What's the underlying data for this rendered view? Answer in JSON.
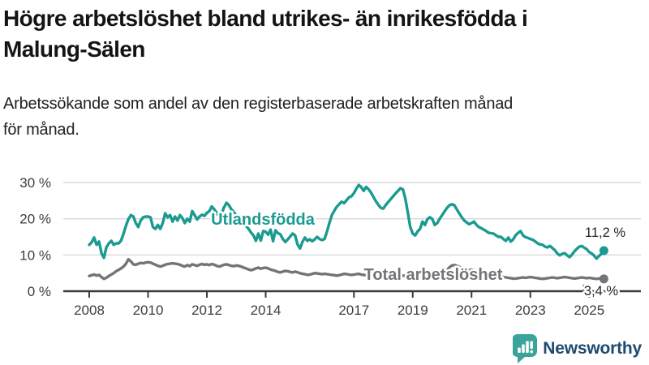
{
  "header": {
    "title": "Högre arbetslöshet bland utrikes- än inrikesfödda i Malung-Sälen",
    "title_lines": [
      "Högre arbetslöshet bland utrikes- än inrikesfödda i",
      "Malung-Sälen"
    ],
    "subtitle": "Arbetssökande som andel av den registerbaserade arbetskraften månad för månad.",
    "subtitle_lines": [
      "Arbetssökande som andel av den registerbaserade arbetskraften månad",
      "för månad."
    ]
  },
  "footer": {
    "brand_name": "Newsworthy",
    "brand_icon": "bar-chart-speech-bubble-icon",
    "brand_icon_color": "#3aa39a",
    "brand_text_color": "#1e4a6e"
  },
  "colors": {
    "series_foreign_born": "#1a9a90",
    "series_total": "#747379",
    "gridline": "#d9d9d9",
    "axis": "#3a3a3a",
    "axis_text": "#3d3d3d"
  },
  "chart_data": {
    "type": "line",
    "title": "Högre arbetslöshet bland utrikes- än inrikesfödda i Malung-Sälen",
    "subtitle": "Arbetssökande som andel av den registerbaserade arbetskraften månad för månad.",
    "x_unit": "month",
    "x_range": {
      "start": "2008-01",
      "end": "2025-07"
    },
    "x_ticks": [
      {
        "year": 2008,
        "label": "2008"
      },
      {
        "year": 2010,
        "label": "2010"
      },
      {
        "year": 2012,
        "label": "2012"
      },
      {
        "year": 2014,
        "label": "2014"
      },
      {
        "year": 2017,
        "label": "2017"
      },
      {
        "year": 2019,
        "label": "2019"
      },
      {
        "year": 2021,
        "label": "2021"
      },
      {
        "year": 2023,
        "label": "2023"
      },
      {
        "year": 2025,
        "label": "2025"
      }
    ],
    "y_ticks": [
      {
        "value": 0,
        "label": "0 %"
      },
      {
        "value": 10,
        "label": "10 %"
      },
      {
        "value": 20,
        "label": "20 %"
      },
      {
        "value": 30,
        "label": "30 %"
      }
    ],
    "ylim": [
      0,
      32
    ],
    "grid": true,
    "legend_position": "inline-labels",
    "series": [
      {
        "name": "Utlandsfödda",
        "color": "#1a9a90",
        "end_label": "11,2 %",
        "last_value": 11.2,
        "values": [
          12.8,
          13.5,
          14.8,
          12.8,
          13.7,
          10.5,
          9.2,
          12.1,
          13.2,
          13.9,
          12.8,
          13.2,
          13.2,
          14.0,
          15.9,
          18.1,
          19.9,
          21.0,
          20.6,
          18.8,
          17.7,
          19.5,
          20.4,
          20.6,
          20.6,
          20.4,
          17.7,
          17.2,
          18.3,
          17.2,
          18.8,
          21.5,
          20.4,
          21.0,
          19.2,
          20.6,
          19.5,
          21.0,
          20.2,
          18.8,
          20.0,
          19.2,
          22.1,
          21.0,
          19.8,
          20.6,
          21.1,
          20.8,
          21.6,
          22.1,
          23.4,
          22.6,
          21.6,
          20.6,
          21.4,
          23.1,
          24.4,
          23.7,
          22.6,
          21.8,
          21.0,
          20.2,
          19.4,
          18.7,
          18.0,
          17.2,
          16.2,
          15.4,
          13.9,
          15.9,
          14.0,
          16.6,
          16.4,
          15.6,
          17.0,
          13.8,
          16.8,
          16.0,
          15.7,
          14.4,
          13.6,
          14.3,
          15.1,
          15.9,
          15.4,
          12.9,
          11.8,
          13.6,
          14.8,
          13.9,
          14.3,
          13.8,
          14.3,
          15.0,
          14.4,
          14.1,
          14.4,
          16.4,
          18.8,
          21.0,
          22.2,
          23.3,
          24.0,
          24.7,
          24.3,
          25.1,
          25.9,
          26.2,
          27.1,
          28.3,
          29.3,
          28.7,
          27.7,
          28.8,
          28.1,
          27.2,
          26.0,
          24.8,
          23.8,
          23.0,
          22.8,
          23.8,
          24.6,
          25.4,
          26.2,
          27.0,
          27.7,
          28.4,
          28.1,
          25.5,
          21.7,
          17.7,
          15.9,
          15.4,
          16.5,
          17.2,
          19.2,
          18.3,
          19.9,
          20.4,
          19.9,
          18.3,
          18.8,
          20.0,
          21.0,
          22.0,
          23.0,
          23.7,
          24.0,
          23.7,
          22.6,
          21.5,
          20.4,
          19.5,
          19.0,
          18.5,
          18.8,
          19.2,
          18.3,
          17.7,
          17.4,
          17.0,
          16.6,
          16.1,
          16.0,
          15.9,
          15.4,
          15.0,
          15.0,
          14.4,
          13.9,
          14.8,
          13.7,
          14.3,
          15.4,
          16.1,
          16.6,
          15.4,
          14.9,
          14.7,
          14.4,
          14.2,
          13.7,
          13.2,
          12.9,
          12.8,
          12.3,
          12.1,
          12.5,
          11.9,
          11.3,
          10.4,
          9.9,
          10.3,
          10.5,
          9.9,
          9.4,
          10.1,
          11.0,
          11.7,
          12.3,
          12.5,
          12.0,
          11.6,
          10.8,
          10.4,
          9.8,
          9.0,
          9.7,
          10.3,
          11.2
        ]
      },
      {
        "name": "Total arbetslöshet",
        "color": "#747379",
        "end_label": "3,4 %",
        "last_value": 3.4,
        "values": [
          4.2,
          4.4,
          4.6,
          4.3,
          4.5,
          3.9,
          3.4,
          3.7,
          4.2,
          4.6,
          5.0,
          5.5,
          5.9,
          6.3,
          6.8,
          7.6,
          8.8,
          8.2,
          7.4,
          7.3,
          7.6,
          7.8,
          7.7,
          7.9,
          8.0,
          7.9,
          7.6,
          7.3,
          7.0,
          6.8,
          7.0,
          7.3,
          7.5,
          7.6,
          7.7,
          7.6,
          7.5,
          7.3,
          7.0,
          6.8,
          7.2,
          6.9,
          7.4,
          7.2,
          7.0,
          7.3,
          7.5,
          7.3,
          7.4,
          7.2,
          7.5,
          7.3,
          7.0,
          6.8,
          7.0,
          7.3,
          7.4,
          7.2,
          7.0,
          6.9,
          7.1,
          7.0,
          6.8,
          6.5,
          6.3,
          6.0,
          5.8,
          6.0,
          6.3,
          6.5,
          6.2,
          6.4,
          6.5,
          6.3,
          6.0,
          5.8,
          5.6,
          5.3,
          5.2,
          5.4,
          5.6,
          5.5,
          5.3,
          5.2,
          5.4,
          5.2,
          5.0,
          4.8,
          4.7,
          4.5,
          4.6,
          4.8,
          5.0,
          4.9,
          4.8,
          4.7,
          4.8,
          4.7,
          4.6,
          4.5,
          4.4,
          4.3,
          4.4,
          4.6,
          4.8,
          4.7,
          4.6,
          4.5,
          4.6,
          4.7,
          4.8,
          4.6,
          4.5,
          4.4,
          4.5,
          4.7,
          4.8,
          4.6,
          4.5,
          4.4,
          4.5,
          4.6,
          4.7,
          4.8,
          4.7,
          4.6,
          4.5,
          4.4,
          4.3,
          4.2,
          4.1,
          4.0,
          4.1,
          4.2,
          4.3,
          4.4,
          4.5,
          4.6,
          4.6,
          4.5,
          4.4,
          4.4,
          4.5,
          4.6,
          4.8,
          5.1,
          5.8,
          6.6,
          7.1,
          7.2,
          7.0,
          6.7,
          6.4,
          6.1,
          5.9,
          5.8,
          5.9,
          5.8,
          5.6,
          5.4,
          5.2,
          5.0,
          4.8,
          4.6,
          4.4,
          4.3,
          4.2,
          4.1,
          4.0,
          3.9,
          3.8,
          3.7,
          3.6,
          3.5,
          3.5,
          3.6,
          3.7,
          3.8,
          3.7,
          3.8,
          3.9,
          3.8,
          3.7,
          3.6,
          3.5,
          3.4,
          3.5,
          3.6,
          3.7,
          3.8,
          3.7,
          3.6,
          3.7,
          3.8,
          3.9,
          3.8,
          3.7,
          3.6,
          3.5,
          3.6,
          3.7,
          3.8,
          3.7,
          3.6,
          3.7,
          3.6,
          3.5,
          3.4,
          3.5,
          3.6,
          3.4
        ]
      }
    ]
  }
}
